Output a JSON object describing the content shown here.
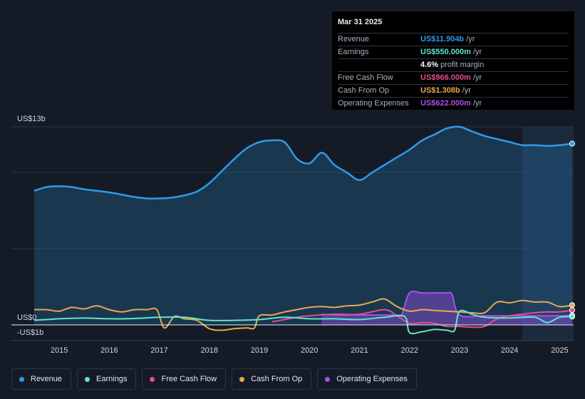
{
  "tooltip": {
    "date": "Mar 31 2025",
    "rows": [
      {
        "label": "Revenue",
        "value": "US$11.904b",
        "unit": "/yr",
        "color": "#2f9be8"
      },
      {
        "label": "Earnings",
        "value": "US$550.000m",
        "unit": "/yr",
        "color": "#5ee6d1"
      },
      {
        "label": "",
        "value": "4.6%",
        "unit": "profit margin",
        "color": "#ffffff"
      },
      {
        "label": "Free Cash Flow",
        "value": "US$966.000m",
        "unit": "/yr",
        "color": "#e0508f"
      },
      {
        "label": "Cash From Op",
        "value": "US$1.308b",
        "unit": "/yr",
        "color": "#e8a94e"
      },
      {
        "label": "Operating Expenses",
        "value": "US$622.000m",
        "unit": "/yr",
        "color": "#a84ff0"
      }
    ]
  },
  "legend": [
    {
      "label": "Revenue",
      "color": "#2f9be8"
    },
    {
      "label": "Earnings",
      "color": "#5ee6d1"
    },
    {
      "label": "Free Cash Flow",
      "color": "#e0508f"
    },
    {
      "label": "Cash From Op",
      "color": "#e8a94e"
    },
    {
      "label": "Operating Expenses",
      "color": "#a84ff0"
    }
  ],
  "chart_data": {
    "type": "area",
    "title": "",
    "xlabel": "",
    "ylabel": "",
    "y_top_label": "US$13b",
    "y_zero_label": "US$0",
    "y_neg_label": "-US$1b",
    "ylim": [
      -1,
      13
    ],
    "xlim": [
      2014.5,
      2025.25
    ],
    "x_ticks": [
      "2015",
      "2016",
      "2017",
      "2018",
      "2019",
      "2020",
      "2021",
      "2022",
      "2023",
      "2024",
      "2025"
    ],
    "x_tick_values": [
      2015,
      2016,
      2017,
      2018,
      2019,
      2020,
      2021,
      2022,
      2023,
      2024,
      2025
    ],
    "highlight_from": 2024.25,
    "series": [
      {
        "name": "Revenue",
        "color": "#2f9be8",
        "fill": true,
        "x": [
          2014.5,
          2014.75,
          2015.0,
          2015.25,
          2015.5,
          2015.75,
          2016.0,
          2016.25,
          2016.5,
          2016.75,
          2017.0,
          2017.25,
          2017.5,
          2017.75,
          2018.0,
          2018.25,
          2018.5,
          2018.75,
          2019.0,
          2019.2,
          2019.5,
          2019.75,
          2020.0,
          2020.25,
          2020.5,
          2020.75,
          2021.0,
          2021.25,
          2021.5,
          2021.75,
          2022.0,
          2022.25,
          2022.5,
          2022.75,
          2023.0,
          2023.25,
          2023.5,
          2023.75,
          2024.0,
          2024.25,
          2024.5,
          2024.75,
          2025.0,
          2025.25
        ],
        "values": [
          8.8,
          9.05,
          9.1,
          9.05,
          8.9,
          8.8,
          8.7,
          8.55,
          8.4,
          8.3,
          8.3,
          8.35,
          8.5,
          8.75,
          9.3,
          10.1,
          10.9,
          11.6,
          12.0,
          12.1,
          12.0,
          10.9,
          10.6,
          11.3,
          10.5,
          10.0,
          9.5,
          10.0,
          10.5,
          11.0,
          11.5,
          12.1,
          12.5,
          12.9,
          13.0,
          12.7,
          12.4,
          12.2,
          12.0,
          11.8,
          11.8,
          11.75,
          11.8,
          11.9
        ]
      },
      {
        "name": "Earnings",
        "color": "#5ee6d1",
        "fill": false,
        "x": [
          2014.5,
          2015.0,
          2015.5,
          2016.0,
          2016.5,
          2017.0,
          2017.5,
          2018.0,
          2018.5,
          2019.0,
          2019.5,
          2020.0,
          2020.5,
          2021.0,
          2021.5,
          2021.9,
          2022.0,
          2022.25,
          2022.5,
          2022.75,
          2022.9,
          2023.0,
          2023.25,
          2023.5,
          2024.0,
          2024.5,
          2024.75,
          2025.0,
          2025.25
        ],
        "values": [
          0.3,
          0.4,
          0.45,
          0.4,
          0.42,
          0.5,
          0.5,
          0.3,
          0.3,
          0.35,
          0.5,
          0.4,
          0.4,
          0.35,
          0.5,
          0.55,
          -0.5,
          -0.45,
          -0.3,
          -0.35,
          -0.35,
          0.9,
          0.7,
          0.5,
          0.45,
          0.5,
          0.15,
          0.5,
          0.55
        ]
      },
      {
        "name": "Free Cash Flow",
        "color": "#e0508f",
        "fill": false,
        "x": [
          2019.25,
          2019.5,
          2019.75,
          2020.0,
          2020.5,
          2021.0,
          2021.5,
          2021.75,
          2022.0,
          2022.25,
          2022.5,
          2022.75,
          2023.0,
          2023.25,
          2023.5,
          2023.75,
          2024.0,
          2024.25,
          2024.5,
          2024.75,
          2025.0,
          2025.25
        ],
        "values": [
          0.2,
          0.35,
          0.5,
          0.6,
          0.7,
          0.7,
          1.0,
          0.6,
          0.1,
          0.15,
          0.1,
          -0.1,
          -0.1,
          -0.15,
          -0.1,
          0.4,
          0.6,
          0.7,
          0.8,
          0.85,
          0.85,
          0.97
        ]
      },
      {
        "name": "Cash From Op",
        "color": "#e8a94e",
        "fill": false,
        "x": [
          2014.5,
          2014.75,
          2015.0,
          2015.25,
          2015.5,
          2015.75,
          2016.0,
          2016.25,
          2016.5,
          2016.75,
          2016.95,
          2017.1,
          2017.3,
          2017.5,
          2017.75,
          2018.0,
          2018.25,
          2018.5,
          2018.75,
          2018.9,
          2019.0,
          2019.25,
          2019.5,
          2019.75,
          2020.0,
          2020.25,
          2020.5,
          2020.75,
          2021.0,
          2021.25,
          2021.5,
          2021.75,
          2022.0,
          2022.25,
          2022.5,
          2022.75,
          2023.0,
          2023.25,
          2023.5,
          2023.75,
          2024.0,
          2024.25,
          2024.5,
          2024.75,
          2025.0,
          2025.25
        ],
        "values": [
          1.0,
          1.0,
          0.9,
          1.15,
          1.05,
          1.25,
          1.0,
          0.85,
          1.0,
          1.0,
          1.0,
          -0.2,
          0.55,
          0.4,
          0.3,
          -0.25,
          -0.35,
          -0.25,
          -0.2,
          -0.2,
          0.6,
          0.65,
          0.85,
          1.0,
          1.15,
          1.2,
          1.15,
          1.25,
          1.3,
          1.5,
          1.7,
          1.2,
          0.9,
          1.0,
          0.95,
          0.9,
          0.85,
          0.8,
          0.8,
          1.5,
          1.45,
          1.6,
          1.5,
          1.5,
          1.2,
          1.3
        ]
      },
      {
        "name": "Operating Expenses",
        "color": "#a84ff0",
        "fill": true,
        "x": [
          2020.25,
          2020.5,
          2021.0,
          2021.5,
          2021.75,
          2021.85,
          2022.0,
          2022.25,
          2022.5,
          2022.75,
          2022.85,
          2023.0,
          2023.5,
          2024.0,
          2024.5,
          2025.0,
          2025.25
        ],
        "values": [
          0.7,
          0.65,
          0.65,
          0.65,
          0.65,
          0.7,
          2.1,
          2.1,
          2.1,
          2.1,
          2.0,
          0.65,
          0.6,
          0.6,
          0.6,
          0.6,
          0.62
        ]
      }
    ]
  }
}
